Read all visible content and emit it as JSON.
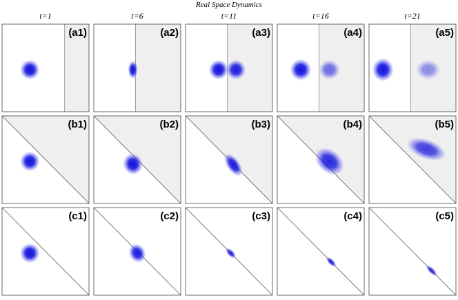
{
  "title": "Real Space Dynamics",
  "columns": [
    "t=1",
    "t=6",
    "t=11",
    "t=16",
    "t=21"
  ],
  "panels": [
    [
      "(a1)",
      "(a2)",
      "(a3)",
      "(a4)",
      "(a5)"
    ],
    [
      "(b1)",
      "(b2)",
      "(b3)",
      "(b4)",
      "(b5)"
    ],
    [
      "(c1)",
      "(c2)",
      "(c3)",
      "(c4)",
      "(c5)"
    ]
  ]
}
